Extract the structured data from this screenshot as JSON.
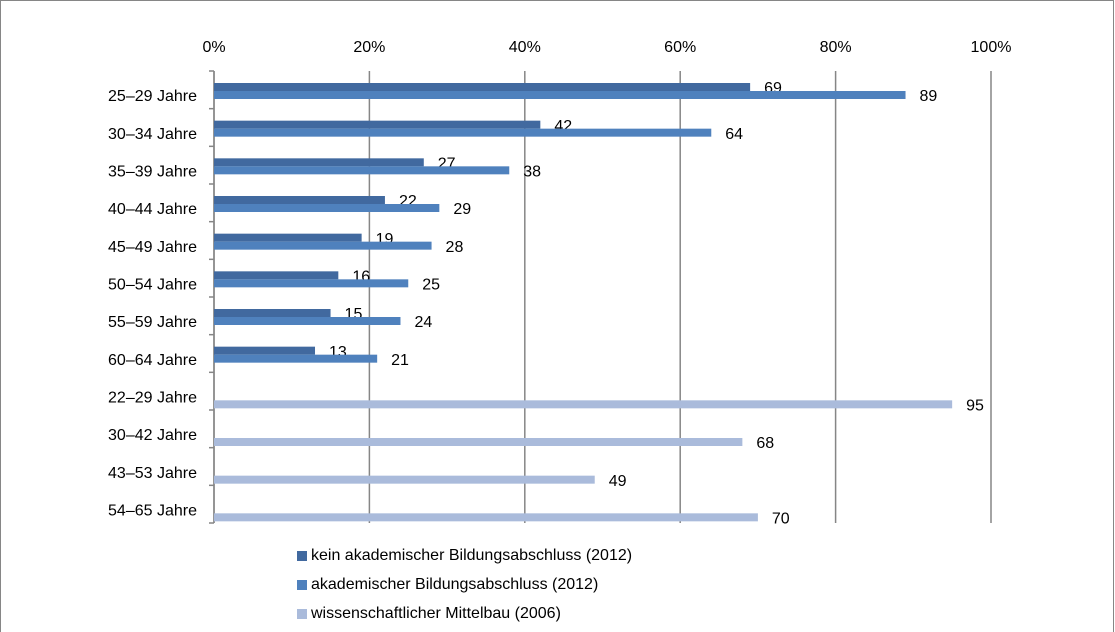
{
  "chart_data": {
    "type": "barh",
    "categories": [
      "25–29 Jahre",
      "30–34 Jahre",
      "35–39 Jahre",
      "40–44 Jahre",
      "45–49 Jahre",
      "50–54 Jahre",
      "55–59 Jahre",
      "60–64 Jahre",
      "22–29 Jahre",
      "30–42 Jahre",
      "43–53 Jahre",
      "54–65 Jahre"
    ],
    "series": [
      {
        "name": "kein akademischer Bildungsabschluss (2012)",
        "color": "#41699f",
        "values": [
          69,
          42,
          27,
          22,
          19,
          16,
          15,
          13,
          null,
          null,
          null,
          null
        ]
      },
      {
        "name": "akademischer Bildungsabschluss (2012)",
        "color": "#4f81bd",
        "values": [
          89,
          64,
          38,
          29,
          28,
          25,
          24,
          21,
          null,
          null,
          null,
          null
        ]
      },
      {
        "name": "wissenschaftlicher Mittelbau (2006)",
        "color": "#aabbdb",
        "values": [
          null,
          null,
          null,
          null,
          null,
          null,
          null,
          null,
          95,
          68,
          49,
          70
        ]
      }
    ],
    "xlim": [
      0,
      100
    ],
    "xticks": [
      {
        "value": 0,
        "label": "0%"
      },
      {
        "value": 20,
        "label": "20%"
      },
      {
        "value": 40,
        "label": "40%"
      },
      {
        "value": 60,
        "label": "60%"
      },
      {
        "value": 80,
        "label": "80%"
      },
      {
        "value": 100,
        "label": "100%"
      }
    ],
    "grid": true,
    "legend": "bottom"
  }
}
